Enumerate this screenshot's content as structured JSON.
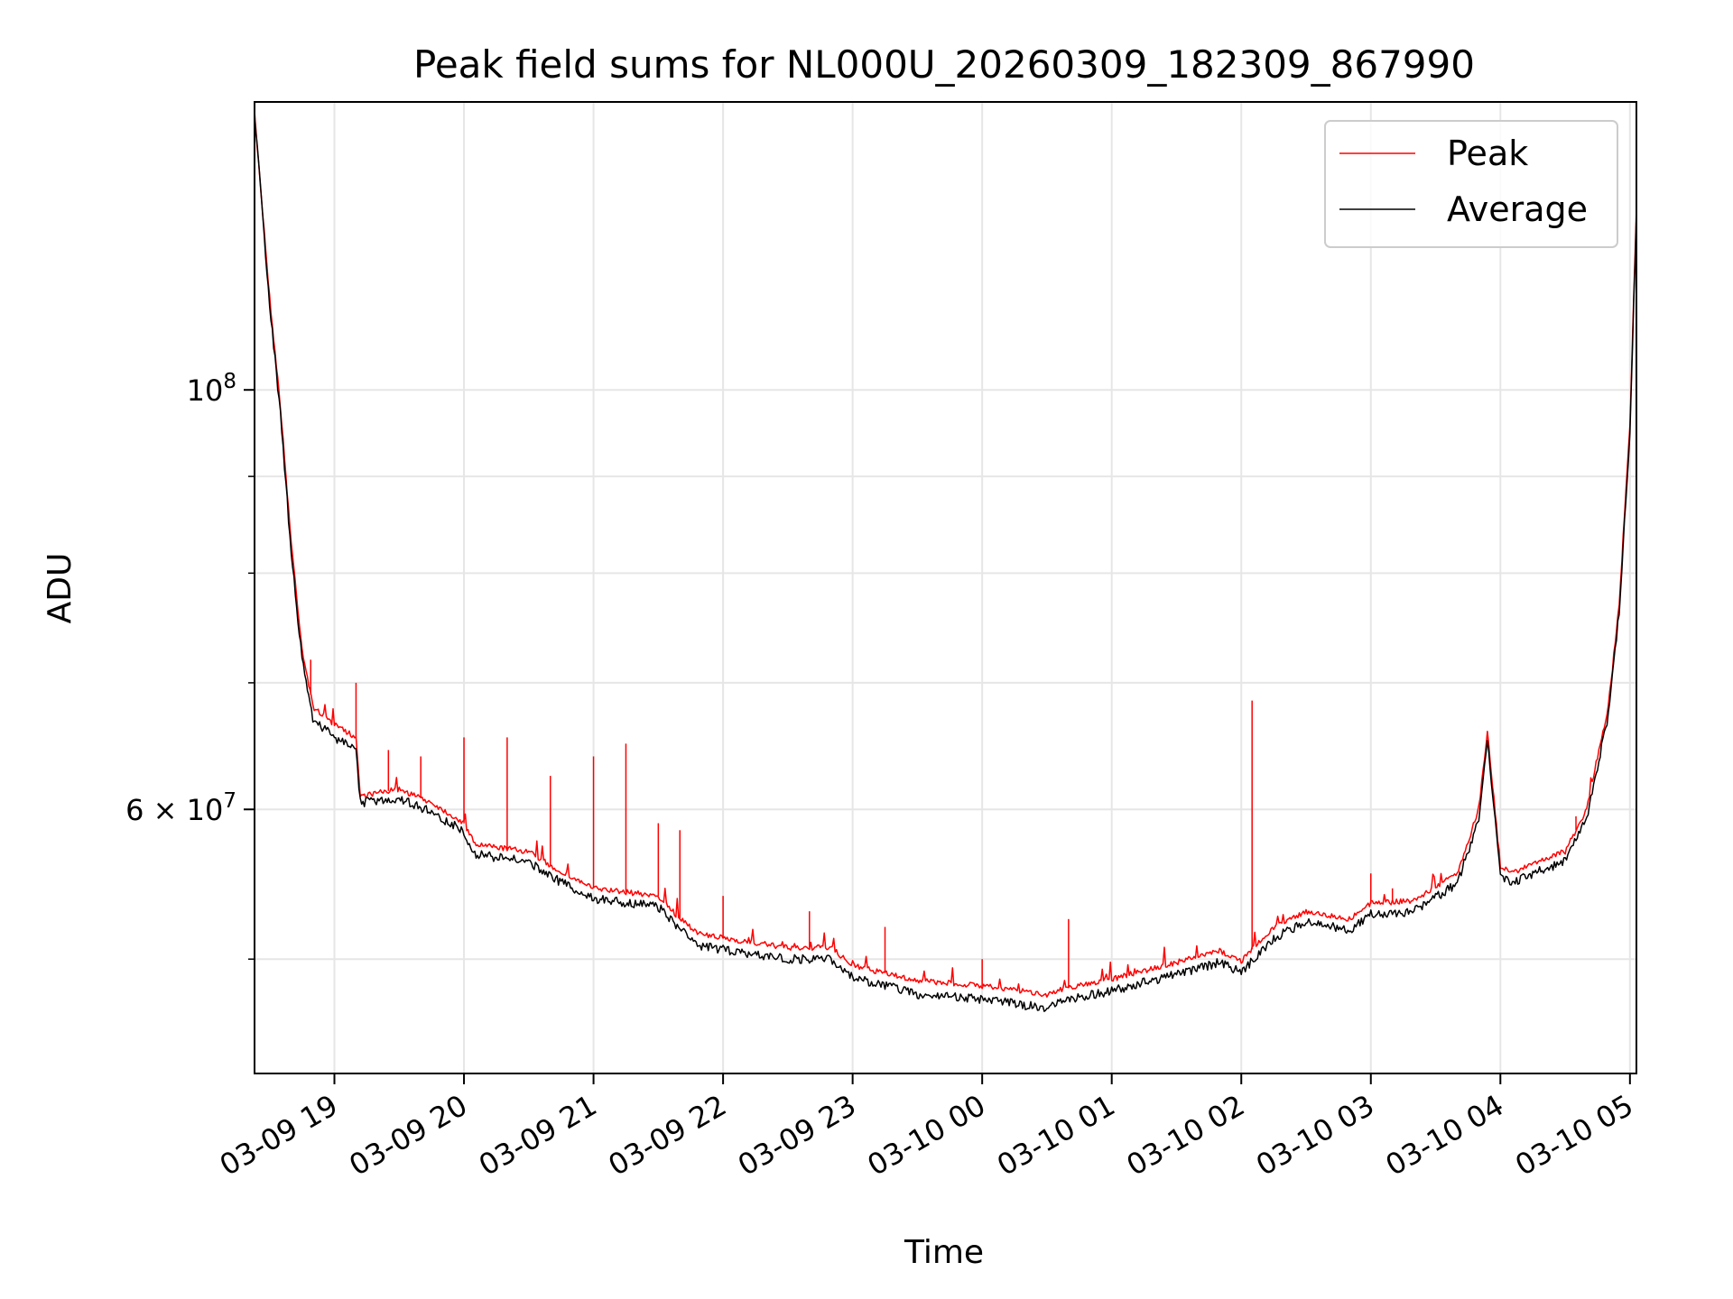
{
  "chart_data": {
    "type": "line",
    "title": "Peak field sums for NL000U_20260309_182309_867990",
    "xlabel": "Time",
    "ylabel": "ADU",
    "y_scale": "log",
    "xlim": [
      "2026-03-09 18:23",
      "2026-03-10 05:03"
    ],
    "ylim": [
      43500000,
      142000000
    ],
    "grid": true,
    "legend_position": "upper right",
    "x_ticks": [
      {
        "t": "2026-03-09 19:00",
        "label": "03-09 19"
      },
      {
        "t": "2026-03-09 20:00",
        "label": "03-09 20"
      },
      {
        "t": "2026-03-09 21:00",
        "label": "03-09 21"
      },
      {
        "t": "2026-03-09 22:00",
        "label": "03-09 22"
      },
      {
        "t": "2026-03-09 23:00",
        "label": "03-09 23"
      },
      {
        "t": "2026-03-10 00:00",
        "label": "03-10 00"
      },
      {
        "t": "2026-03-10 01:00",
        "label": "03-10 01"
      },
      {
        "t": "2026-03-10 02:00",
        "label": "03-10 02"
      },
      {
        "t": "2026-03-10 03:00",
        "label": "03-10 03"
      },
      {
        "t": "2026-03-10 04:00",
        "label": "03-10 04"
      },
      {
        "t": "2026-03-10 05:00",
        "label": "03-10 05"
      }
    ],
    "y_major_ticks": [
      {
        "value": 60000000,
        "base": "6 × 10",
        "exp": "7"
      },
      {
        "value": 100000000,
        "base": "10",
        "exp": "8"
      }
    ],
    "y_minor_ticks": [
      50000000,
      70000000,
      80000000,
      90000000
    ],
    "series": [
      {
        "name": "Peak",
        "color": "#ff0000",
        "points": [
          [
            "2026-03-09 18:23",
            140000000
          ],
          [
            "2026-03-09 18:30",
            112000000
          ],
          [
            "2026-03-09 18:35",
            98000000
          ],
          [
            "2026-03-09 18:40",
            83000000
          ],
          [
            "2026-03-09 18:45",
            73000000
          ],
          [
            "2026-03-09 18:50",
            68000000
          ],
          [
            "2026-03-09 19:00",
            66500000
          ],
          [
            "2026-03-09 19:10",
            65500000
          ],
          [
            "2026-03-09 19:12",
            61000000
          ],
          [
            "2026-03-09 19:30",
            61500000
          ],
          [
            "2026-03-09 19:45",
            60500000
          ],
          [
            "2026-03-09 20:00",
            59000000
          ],
          [
            "2026-03-09 20:05",
            57500000
          ],
          [
            "2026-03-09 20:30",
            57000000
          ],
          [
            "2026-03-09 20:40",
            56000000
          ],
          [
            "2026-03-09 21:00",
            54500000
          ],
          [
            "2026-03-09 21:30",
            54000000
          ],
          [
            "2026-03-09 21:40",
            52500000
          ],
          [
            "2026-03-09 21:50",
            51500000
          ],
          [
            "2026-03-09 22:00",
            51300000
          ],
          [
            "2026-03-09 22:30",
            50700000
          ],
          [
            "2026-03-09 22:50",
            50700000
          ],
          [
            "2026-03-09 23:00",
            49600000
          ],
          [
            "2026-03-09 23:30",
            48700000
          ],
          [
            "2026-03-10 00:00",
            48400000
          ],
          [
            "2026-03-10 00:30",
            47900000
          ],
          [
            "2026-03-10 00:40",
            48300000
          ],
          [
            "2026-03-10 01:00",
            48800000
          ],
          [
            "2026-03-10 01:30",
            49800000
          ],
          [
            "2026-03-10 01:50",
            50500000
          ],
          [
            "2026-03-10 02:00",
            49900000
          ],
          [
            "2026-03-10 02:15",
            52000000
          ],
          [
            "2026-03-10 02:30",
            53000000
          ],
          [
            "2026-03-10 02:50",
            52500000
          ],
          [
            "2026-03-10 03:00",
            53500000
          ],
          [
            "2026-03-10 03:20",
            53700000
          ],
          [
            "2026-03-10 03:40",
            55500000
          ],
          [
            "2026-03-10 03:50",
            60000000
          ],
          [
            "2026-03-10 03:54",
            66000000
          ],
          [
            "2026-03-10 04:00",
            56000000
          ],
          [
            "2026-03-10 04:05",
            55500000
          ],
          [
            "2026-03-10 04:20",
            56500000
          ],
          [
            "2026-03-10 04:30",
            57000000
          ],
          [
            "2026-03-10 04:40",
            60000000
          ],
          [
            "2026-03-10 04:50",
            68000000
          ],
          [
            "2026-03-10 04:55",
            77000000
          ],
          [
            "2026-03-10 05:00",
            96000000
          ],
          [
            "2026-03-10 05:03",
            125000000
          ]
        ]
      },
      {
        "name": "Average",
        "color": "#000000",
        "points": [
          [
            "2026-03-09 18:23",
            140000000
          ],
          [
            "2026-03-09 18:30",
            111000000
          ],
          [
            "2026-03-09 18:35",
            97000000
          ],
          [
            "2026-03-09 18:40",
            82000000
          ],
          [
            "2026-03-09 18:45",
            72000000
          ],
          [
            "2026-03-09 18:50",
            67000000
          ],
          [
            "2026-03-09 19:00",
            65500000
          ],
          [
            "2026-03-09 19:10",
            64500000
          ],
          [
            "2026-03-09 19:12",
            60500000
          ],
          [
            "2026-03-09 19:30",
            60800000
          ],
          [
            "2026-03-09 19:45",
            59800000
          ],
          [
            "2026-03-09 20:00",
            58400000
          ],
          [
            "2026-03-09 20:05",
            56800000
          ],
          [
            "2026-03-09 20:30",
            56300000
          ],
          [
            "2026-03-09 20:40",
            55300000
          ],
          [
            "2026-03-09 21:00",
            53800000
          ],
          [
            "2026-03-09 21:30",
            53300000
          ],
          [
            "2026-03-09 21:40",
            51800000
          ],
          [
            "2026-03-09 21:50",
            50800000
          ],
          [
            "2026-03-09 22:00",
            50600000
          ],
          [
            "2026-03-09 22:30",
            50000000
          ],
          [
            "2026-03-09 22:50",
            50000000
          ],
          [
            "2026-03-09 23:00",
            48900000
          ],
          [
            "2026-03-09 23:30",
            47900000
          ],
          [
            "2026-03-10 00:00",
            47600000
          ],
          [
            "2026-03-10 00:30",
            47100000
          ],
          [
            "2026-03-10 00:40",
            47600000
          ],
          [
            "2026-03-10 01:00",
            48100000
          ],
          [
            "2026-03-10 01:30",
            49100000
          ],
          [
            "2026-03-10 01:50",
            49800000
          ],
          [
            "2026-03-10 02:00",
            49200000
          ],
          [
            "2026-03-10 02:15",
            51300000
          ],
          [
            "2026-03-10 02:30",
            52300000
          ],
          [
            "2026-03-10 02:50",
            51800000
          ],
          [
            "2026-03-10 03:00",
            52800000
          ],
          [
            "2026-03-10 03:20",
            53000000
          ],
          [
            "2026-03-10 03:40",
            54800000
          ],
          [
            "2026-03-10 03:50",
            59300000
          ],
          [
            "2026-03-10 03:54",
            65500000
          ],
          [
            "2026-03-10 04:00",
            55300000
          ],
          [
            "2026-03-10 04:05",
            54800000
          ],
          [
            "2026-03-10 04:20",
            55800000
          ],
          [
            "2026-03-10 04:30",
            56300000
          ],
          [
            "2026-03-10 04:40",
            59300000
          ],
          [
            "2026-03-10 04:50",
            67300000
          ],
          [
            "2026-03-10 04:55",
            76300000
          ],
          [
            "2026-03-10 05:00",
            95000000
          ],
          [
            "2026-03-10 05:03",
            124000000
          ]
        ]
      }
    ],
    "spikes": [
      {
        "t": "2026-03-09 18:49",
        "value": 72000000
      },
      {
        "t": "2026-03-09 19:10",
        "value": 70000000
      },
      {
        "t": "2026-03-09 19:25",
        "value": 64500000
      },
      {
        "t": "2026-03-09 19:40",
        "value": 64000000
      },
      {
        "t": "2026-03-09 20:00",
        "value": 65500000
      },
      {
        "t": "2026-03-09 20:20",
        "value": 65500000
      },
      {
        "t": "2026-03-09 20:40",
        "value": 62500000
      },
      {
        "t": "2026-03-09 21:00",
        "value": 64000000
      },
      {
        "t": "2026-03-09 21:15",
        "value": 65000000
      },
      {
        "t": "2026-03-09 21:30",
        "value": 59000000
      },
      {
        "t": "2026-03-09 21:40",
        "value": 58500000
      },
      {
        "t": "2026-03-09 22:00",
        "value": 54000000
      },
      {
        "t": "2026-03-09 22:40",
        "value": 53000000
      },
      {
        "t": "2026-03-09 23:15",
        "value": 52000000
      },
      {
        "t": "2026-03-10 00:00",
        "value": 50000000
      },
      {
        "t": "2026-03-10 00:40",
        "value": 52500000
      },
      {
        "t": "2026-03-10 02:05",
        "value": 68500000
      },
      {
        "t": "2026-03-10 03:00",
        "value": 55500000
      },
      {
        "t": "2026-03-10 03:10",
        "value": 54500000
      },
      {
        "t": "2026-03-10 04:35",
        "value": 59500000
      }
    ]
  }
}
